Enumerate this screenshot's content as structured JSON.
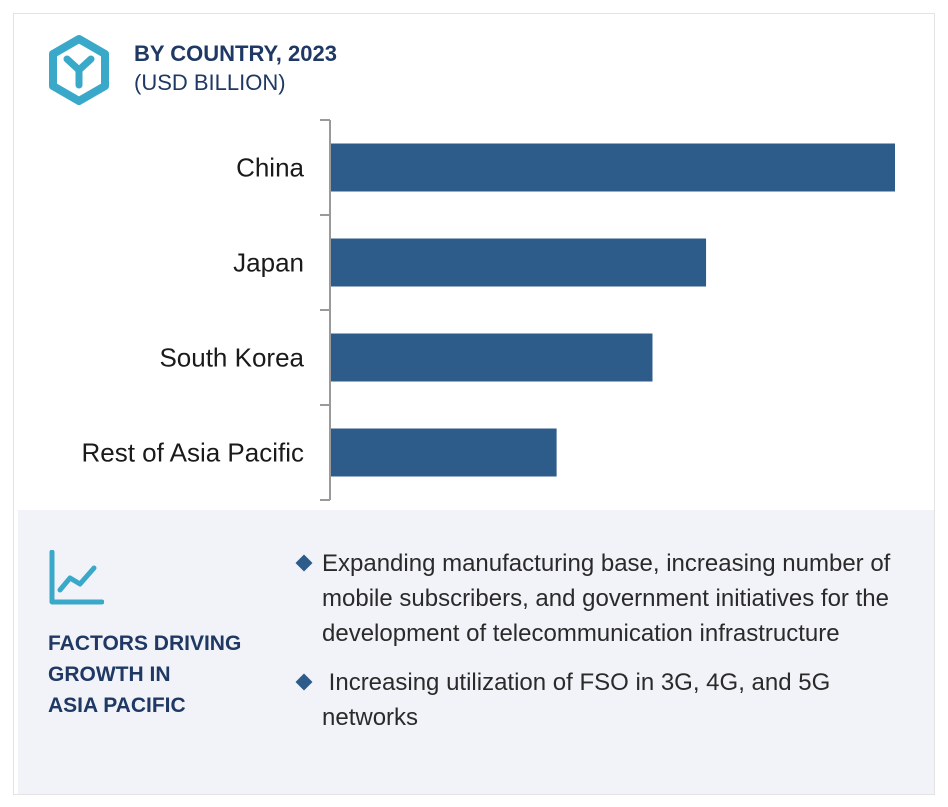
{
  "header": {
    "title": "BY COUNTRY, 2023",
    "subtitle": "(USD BILLION)",
    "logo_icon": "hexagon-y-logo-icon"
  },
  "colors": {
    "bar": "#2d5b8a",
    "heading": "#1f3864",
    "accent": "#3aa9c9",
    "panel_bg": "#f1f3f8"
  },
  "chart_data": {
    "type": "bar",
    "orientation": "horizontal",
    "categories": [
      "China",
      "Japan",
      "South Korea",
      "Rest of Asia Pacific"
    ],
    "values": [
      100,
      66.5,
      57,
      40
    ],
    "title": "BY COUNTRY, 2023",
    "subtitle": "(USD BILLION)",
    "xlim": [
      0,
      100
    ],
    "grid": false,
    "legend": "none"
  },
  "factors": {
    "icon": "line-chart-growth-icon",
    "heading_lines": [
      "FACTORS DRIVING",
      "GROWTH IN",
      "ASIA PACIFIC"
    ],
    "bullets": [
      "Expanding manufacturing base, increasing number of mobile subscribers, and government initiatives for the development of telecommunication infrastructure",
      " Increasing utilization of FSO in 3G, 4G, and 5G networks"
    ]
  }
}
